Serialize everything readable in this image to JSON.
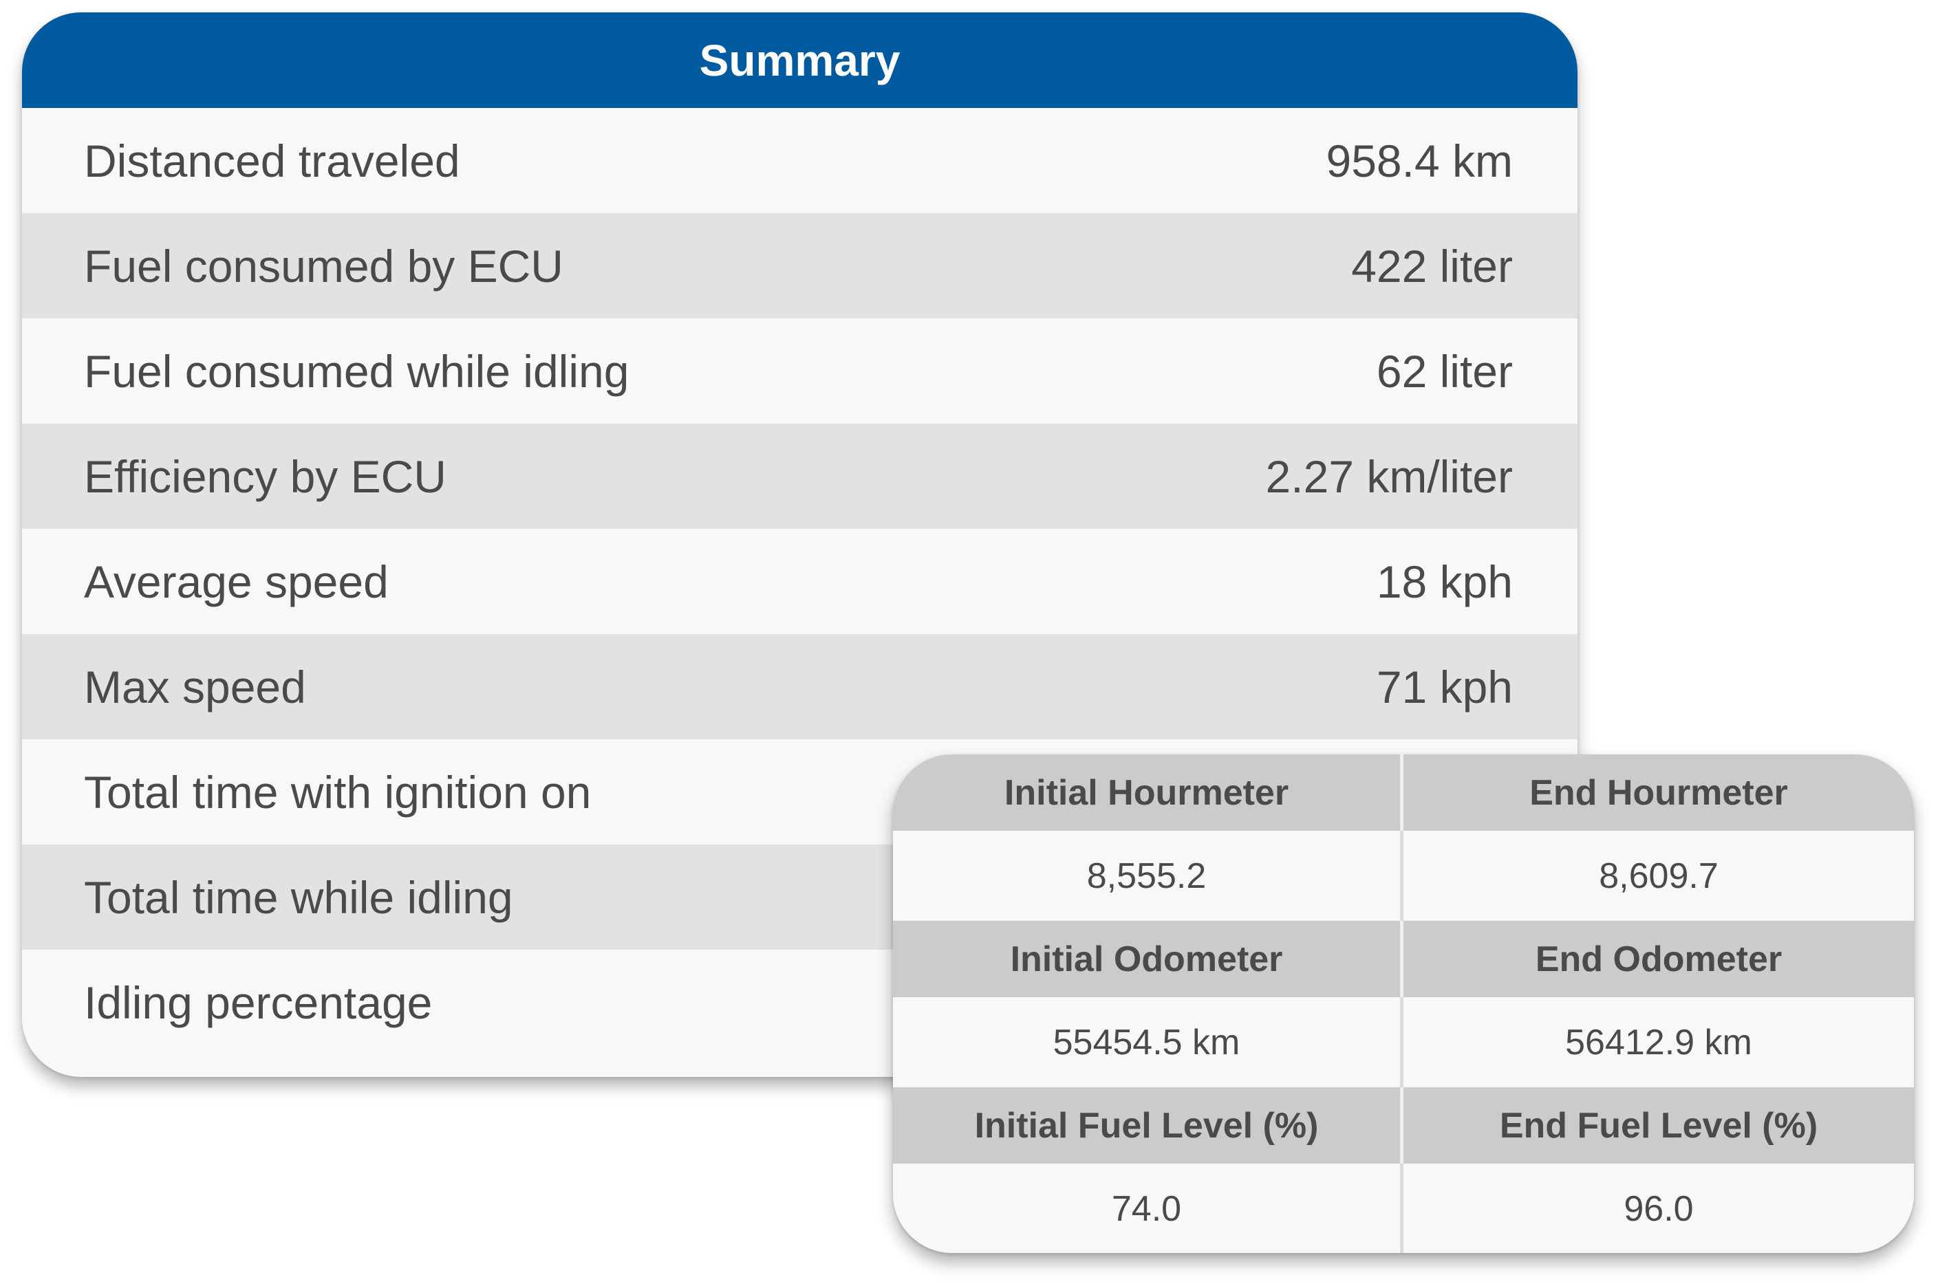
{
  "summary": {
    "title": "Summary",
    "rows": [
      {
        "label": "Distanced traveled",
        "value": "958.4 km"
      },
      {
        "label": "Fuel consumed by ECU",
        "value": "422 liter"
      },
      {
        "label": "Fuel consumed while idling",
        "value": "62 liter"
      },
      {
        "label": "Efficiency by ECU",
        "value": "2.27 km/liter"
      },
      {
        "label": "Average speed",
        "value": "18 kph"
      },
      {
        "label": "Max speed",
        "value": "71 kph"
      },
      {
        "label": "Total time with ignition on",
        "value": ""
      },
      {
        "label": "Total time while idling",
        "value": ""
      },
      {
        "label": "Idling percentage",
        "value": ""
      }
    ]
  },
  "meters": {
    "initial_hourmeter_label": "Initial Hourmeter",
    "end_hourmeter_label": "End Hourmeter",
    "initial_hourmeter_value": "8,555.2",
    "end_hourmeter_value": "8,609.7",
    "initial_odometer_label": "Initial Odometer",
    "end_odometer_label": "End Odometer",
    "initial_odometer_value": "55454.5 km",
    "end_odometer_value": "56412.9 km",
    "initial_fuel_label": "Initial Fuel Level (%)",
    "end_fuel_label": "End Fuel Level (%)",
    "initial_fuel_value": "74.0",
    "end_fuel_value": "96.0"
  },
  "colors": {
    "header_blue": "#005aa0",
    "row_light": "#f8f8f8",
    "row_gray": "#e2e2e2",
    "meter_head_gray": "#cbcbcb",
    "text": "#4a4a4a"
  }
}
